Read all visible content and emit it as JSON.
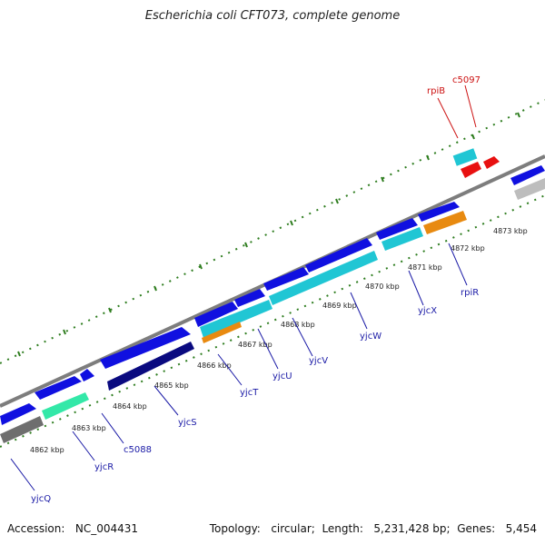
{
  "title": "Escherichia coli CFT073, complete genome",
  "footer": {
    "accession_label": "Accession:",
    "accession_value": "NC_004431",
    "topology_label": "Topology:",
    "topology_value": "circular",
    "length_label": "Length:",
    "length_value": "5,231,428 bp",
    "genes_label": "Genes:",
    "genes_value": "5,454"
  },
  "colors": {
    "backbone": "#8a8a8a",
    "tick": "#2e7d1f",
    "gene_label": "#1a1aa6",
    "highlight_label": "#cc1111"
  },
  "kbp_labels": [
    "4862 kbp",
    "4863 kbp",
    "4864 kbp",
    "4865 kbp",
    "4866 kbp",
    "4867 kbp",
    "4868 kbp",
    "4869 kbp",
    "4870 kbp",
    "4871 kbp",
    "4872 kbp",
    "4873 kbp"
  ],
  "gene_labels": [
    {
      "text": "yjcQ",
      "highlight": false
    },
    {
      "text": "yjcR",
      "highlight": false
    },
    {
      "text": "c5088",
      "highlight": false
    },
    {
      "text": "yjcS",
      "highlight": false
    },
    {
      "text": "yjcT",
      "highlight": false
    },
    {
      "text": "yjcU",
      "highlight": false
    },
    {
      "text": "yjcV",
      "highlight": false
    },
    {
      "text": "yjcW",
      "highlight": false
    },
    {
      "text": "yjcX",
      "highlight": false
    },
    {
      "text": "rpiR",
      "highlight": false
    },
    {
      "text": "rpiB",
      "highlight": true
    },
    {
      "text": "c5097",
      "highlight": true
    }
  ]
}
